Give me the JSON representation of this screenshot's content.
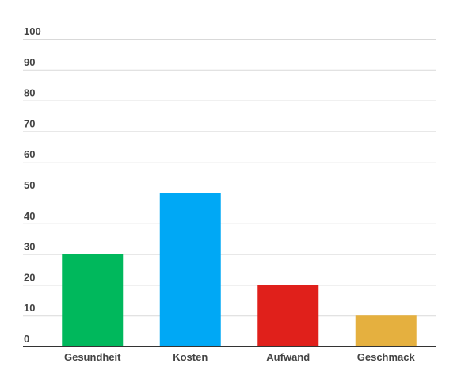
{
  "chart_data": {
    "type": "bar",
    "title": "",
    "xlabel": "",
    "ylabel": "",
    "categories": [
      "Gesundheit",
      "Kosten",
      "Aufwand",
      "Geschmack"
    ],
    "values": [
      30,
      50,
      20,
      10
    ],
    "colors": [
      "#00b85c",
      "#00a8f5",
      "#e0201b",
      "#e5b03f"
    ],
    "ylim": [
      0,
      100
    ],
    "yticks": [
      0,
      10,
      20,
      30,
      40,
      50,
      60,
      70,
      80,
      90,
      100
    ],
    "grid": true,
    "legend": "none"
  }
}
